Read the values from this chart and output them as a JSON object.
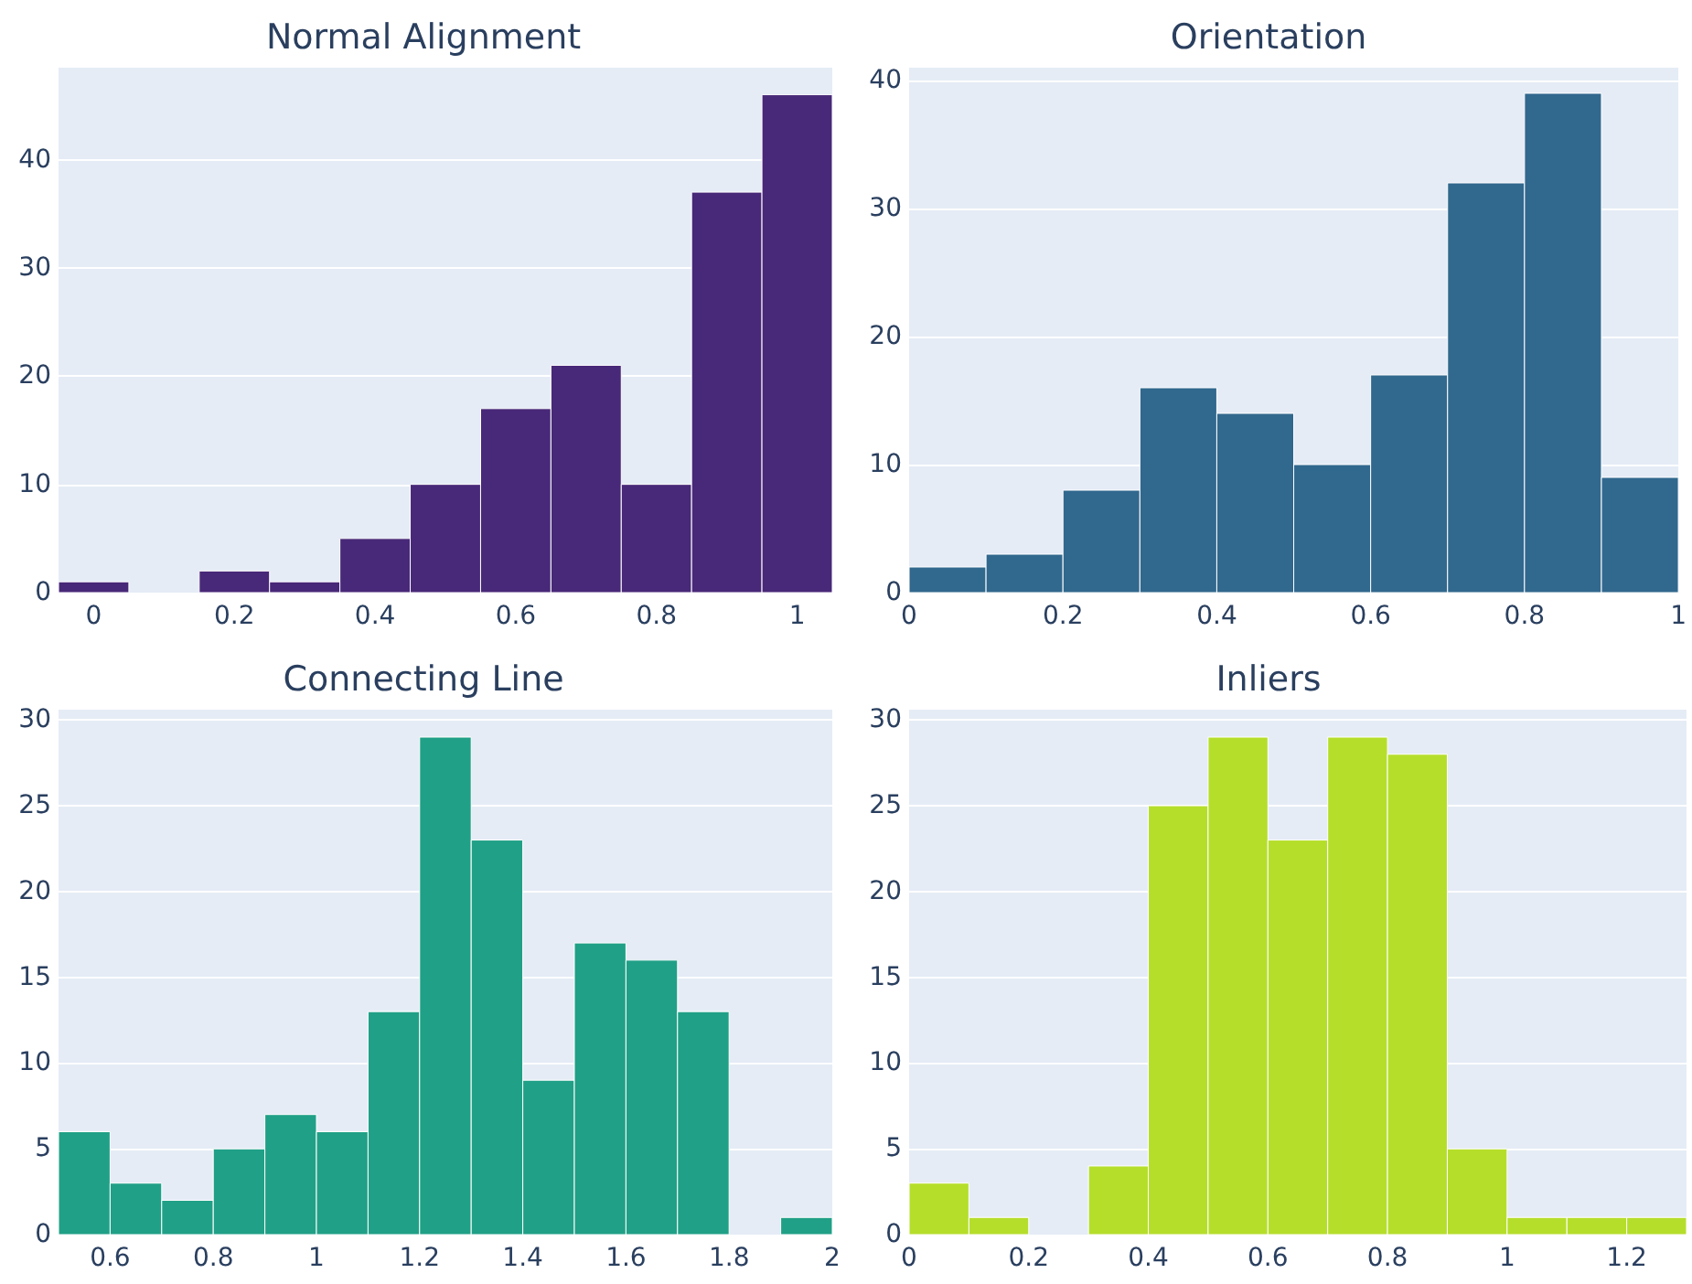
{
  "chart_data": [
    {
      "type": "histogram",
      "title": "Normal Alignment",
      "bins": [
        -0.05,
        0.05,
        0.15,
        0.25,
        0.35,
        0.45,
        0.55,
        0.65,
        0.75,
        0.85,
        0.95,
        1.05
      ],
      "values": [
        1,
        0,
        2,
        1,
        5,
        10,
        17,
        21,
        10,
        37,
        46
      ],
      "color": "#482878",
      "xlim": [
        -0.05,
        1.05
      ],
      "xticks": [
        0,
        0.2,
        0.4,
        0.6,
        0.8,
        1
      ],
      "ylim": [
        0,
        48.5
      ],
      "yticks": [
        0,
        10,
        20,
        30,
        40
      ],
      "grid": "y"
    },
    {
      "type": "histogram",
      "title": "Orientation",
      "bins": [
        0,
        0.1,
        0.2,
        0.3,
        0.4,
        0.5,
        0.6,
        0.7,
        0.8,
        0.9,
        1
      ],
      "values": [
        2,
        3,
        8,
        16,
        14,
        10,
        17,
        32,
        39,
        9
      ],
      "color": "#31688e",
      "xlim": [
        0,
        1
      ],
      "xticks": [
        0,
        0.2,
        0.4,
        0.6,
        0.8,
        1
      ],
      "ylim": [
        0,
        41
      ],
      "yticks": [
        0,
        10,
        20,
        30,
        40
      ],
      "grid": "y"
    },
    {
      "type": "histogram",
      "title": "Connecting Line",
      "bins": [
        0.5,
        0.6,
        0.7,
        0.8,
        0.9,
        1,
        1.1,
        1.2,
        1.3,
        1.4,
        1.5,
        1.6,
        1.7,
        1.8,
        1.9,
        2
      ],
      "values": [
        6,
        3,
        2,
        5,
        7,
        6,
        13,
        29,
        23,
        9,
        17,
        16,
        13,
        0,
        1
      ],
      "color": "#20a087",
      "xlim": [
        0.5,
        2
      ],
      "xticks": [
        0.6,
        0.8,
        1,
        1.2,
        1.4,
        1.6,
        1.8,
        2
      ],
      "ylim": [
        0,
        30.6
      ],
      "yticks": [
        0,
        5,
        10,
        15,
        20,
        25,
        30
      ],
      "grid": "y"
    },
    {
      "type": "histogram",
      "title": "Inliers",
      "bins": [
        0,
        0.1,
        0.2,
        0.3,
        0.4,
        0.5,
        0.6,
        0.7,
        0.8,
        0.9,
        1,
        1.1,
        1.2,
        1.3
      ],
      "values": [
        3,
        1,
        0,
        4,
        25,
        29,
        23,
        29,
        28,
        5,
        1,
        1,
        1
      ],
      "color": "#b5de2b",
      "xlim": [
        0,
        1.3
      ],
      "xticks": [
        0,
        0.2,
        0.4,
        0.6,
        0.8,
        1,
        1.2
      ],
      "ylim": [
        0,
        30.6
      ],
      "yticks": [
        0,
        5,
        10,
        15,
        20,
        25,
        30
      ],
      "grid": "y"
    }
  ]
}
